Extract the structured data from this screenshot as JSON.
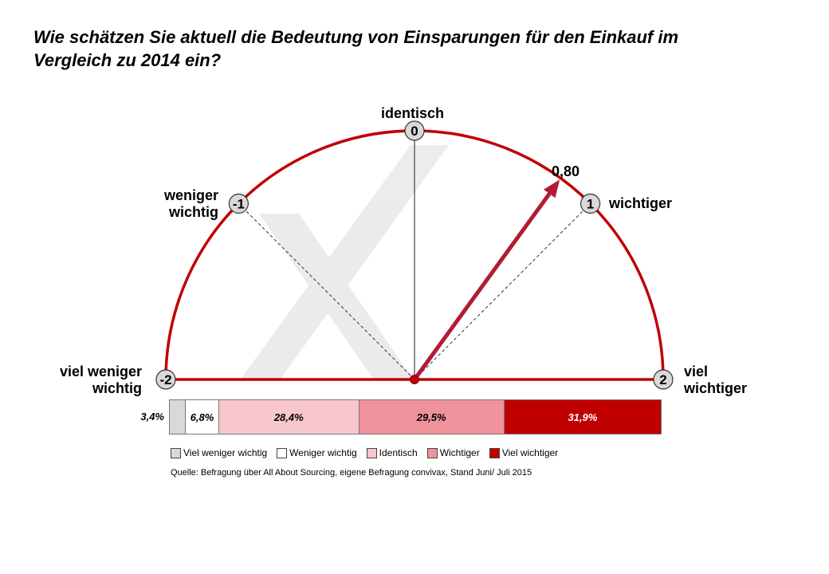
{
  "title_lines": [
    "Wie schätzen Sie aktuell die Bedeutung von Einsparungen für den Einkauf im",
    "Vergleich zu 2014 ein?"
  ],
  "colors": {
    "arc": "#c00000",
    "arrow": "#b31b34",
    "marker_fill": "#d9d9d9"
  },
  "gauge": {
    "scale_min": -2,
    "scale_max": 2,
    "ticks": [
      {
        "value": -2,
        "label": "-2"
      },
      {
        "value": -1,
        "label": "-1"
      },
      {
        "value": 0,
        "label": "0"
      },
      {
        "value": 1,
        "label": "1"
      },
      {
        "value": 2,
        "label": "2"
      }
    ],
    "value": 0.8,
    "value_label": "0,80",
    "labels": {
      "identisch": [
        "identisch"
      ],
      "weniger_wichtig": [
        "weniger",
        "wichtig"
      ],
      "wichtiger": [
        "wichtiger"
      ],
      "viel_weniger_wichtig": [
        "viel weniger",
        "wichtig"
      ],
      "viel_wichtiger": [
        "viel",
        "wichtiger"
      ]
    }
  },
  "chart_data": {
    "type": "bar",
    "orientation": "horizontal-stacked",
    "categories": [
      "Viel weniger wichtig",
      "Weniger wichtig",
      "Identisch",
      "Wichtiger",
      "Viel wichtiger"
    ],
    "values": [
      3.4,
      6.8,
      28.4,
      29.5,
      31.9
    ],
    "value_labels": [
      "3,4%",
      "6,8%",
      "28,4%",
      "29,5%",
      "31,9%"
    ],
    "colors": [
      "#d9d9d9",
      "#ffffff",
      "#f8c6cd",
      "#f0929c",
      "#c00000"
    ],
    "label_colors": [
      "#000000",
      "#000000",
      "#000000",
      "#000000",
      "#ffffff"
    ],
    "mean": 0.8
  },
  "source": "Quelle:   Befragung über All About Sourcing, eigene Befragung convivax,  Stand Juni/ Juli 2015"
}
